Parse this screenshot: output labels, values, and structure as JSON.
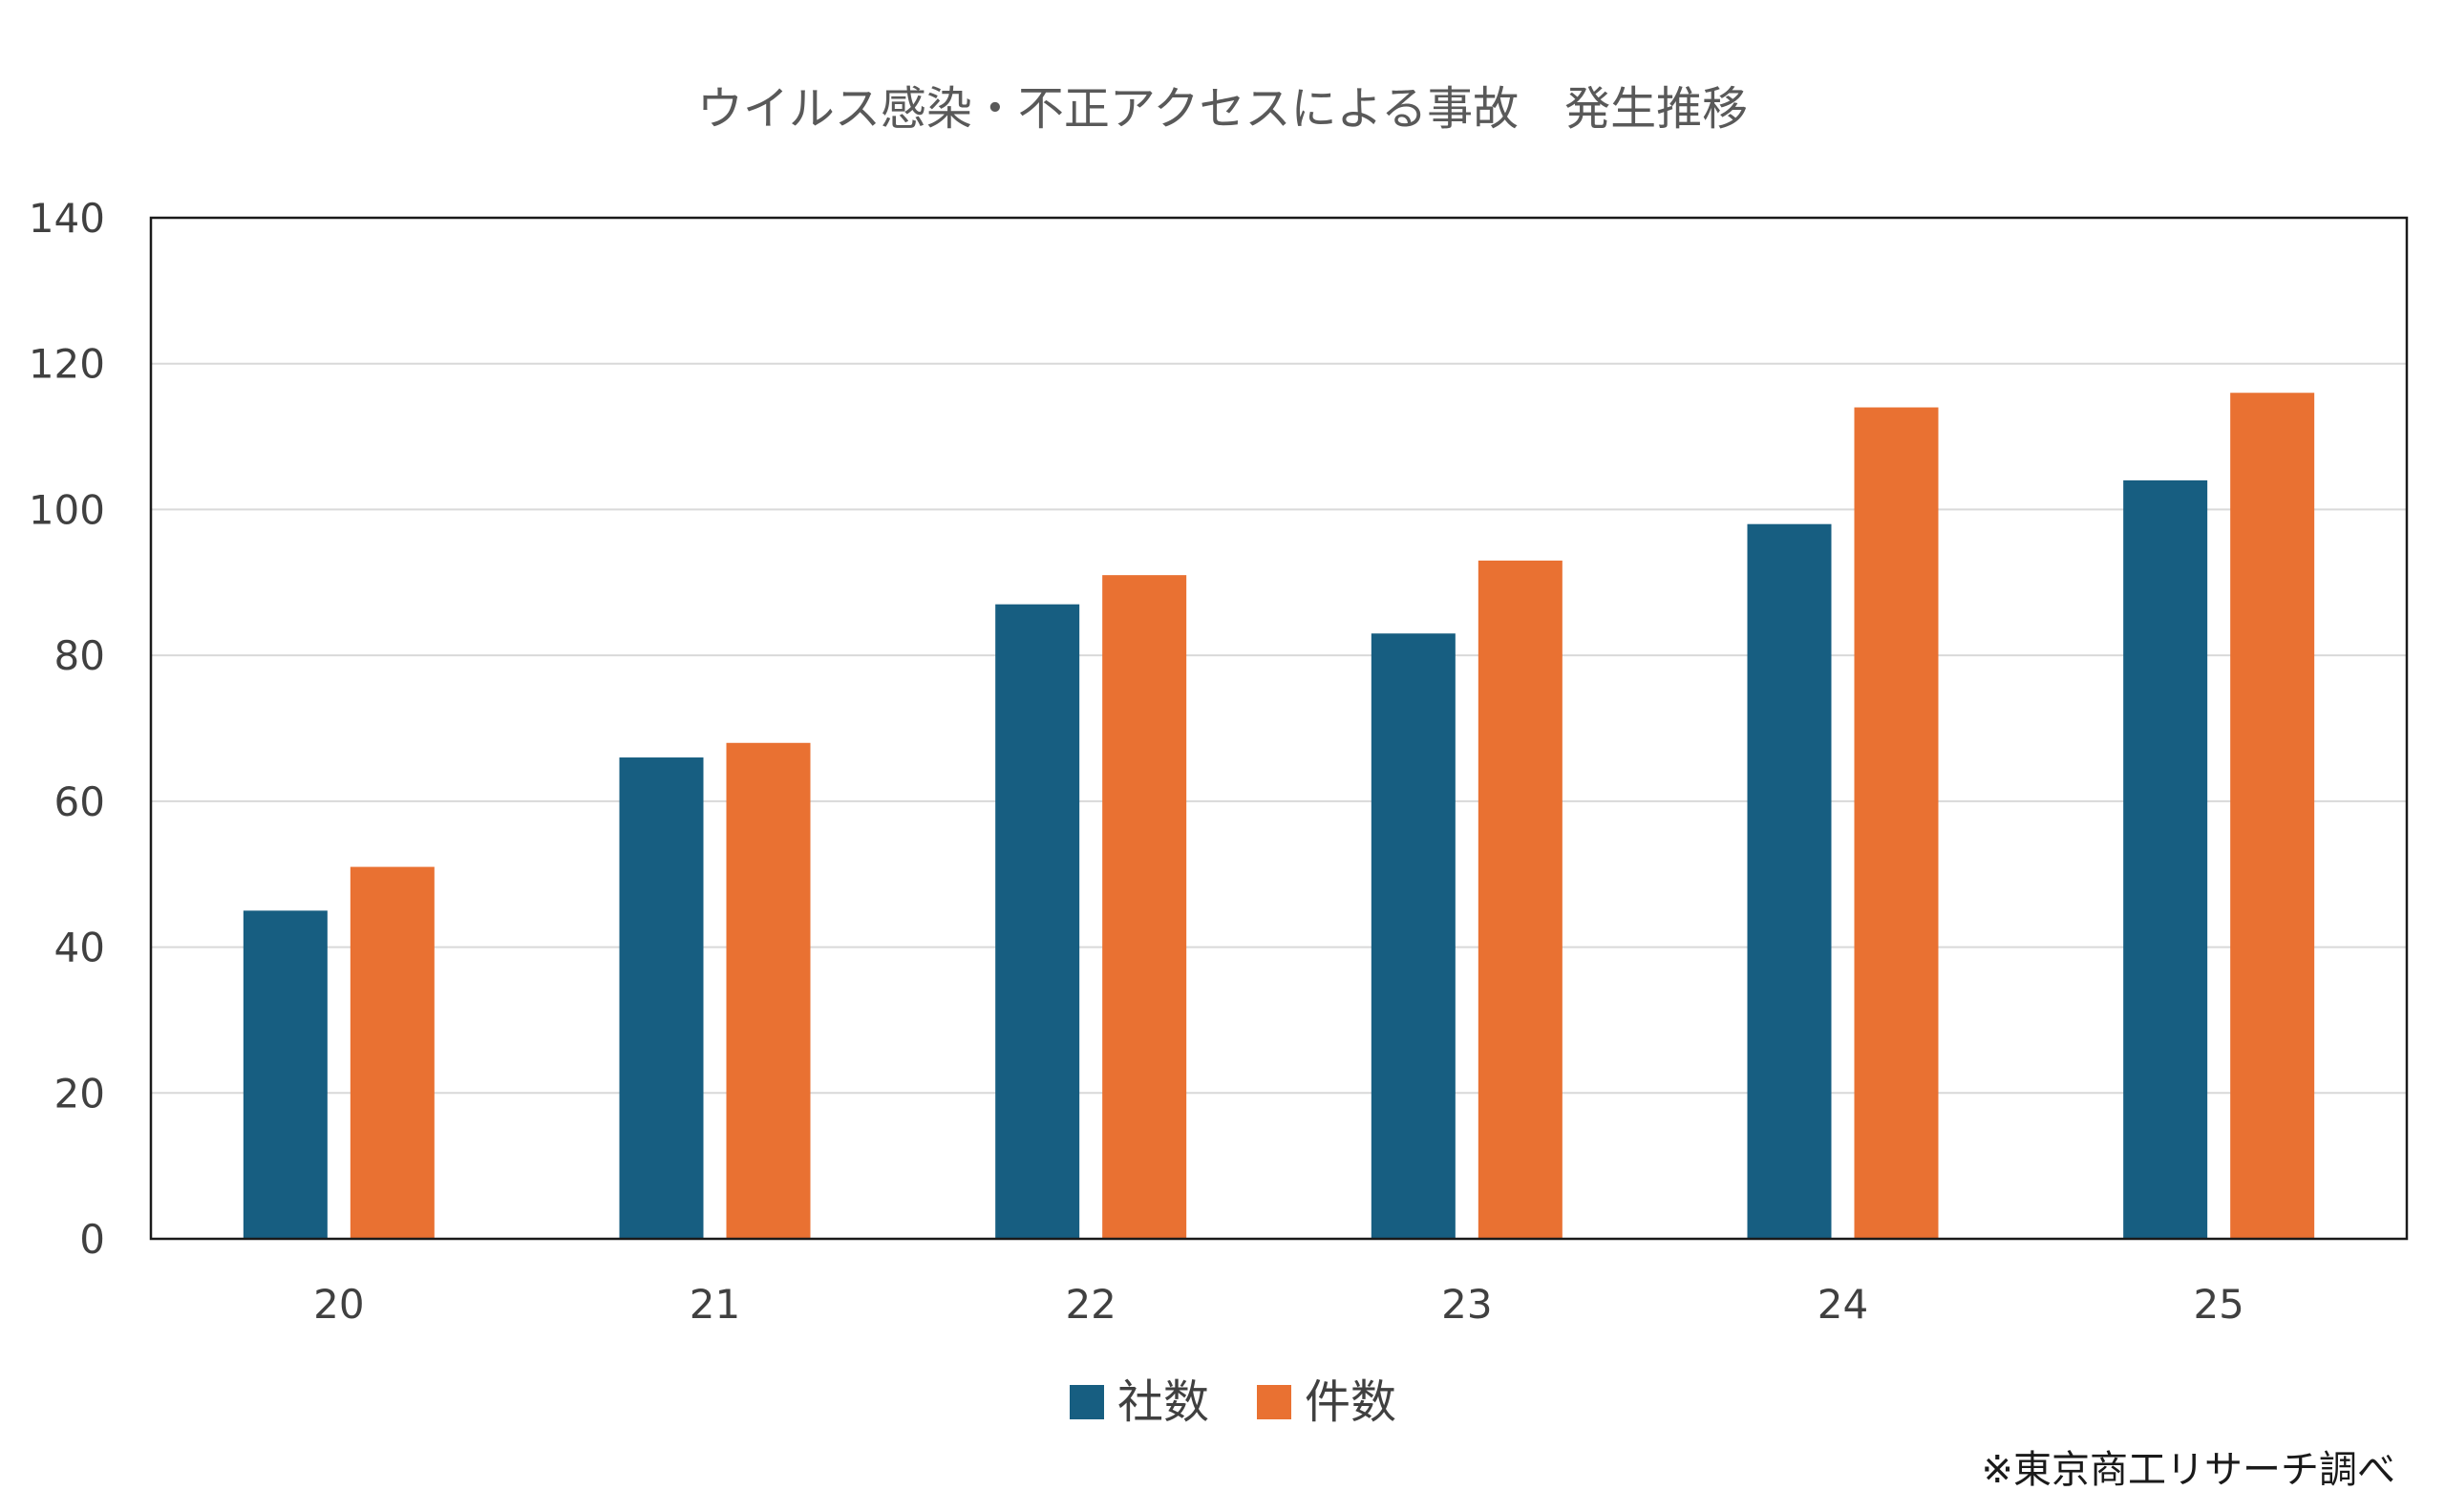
{
  "chart_data": {
    "type": "bar",
    "title": "ウイルス感染・不正アクセスによる事故　発生推移",
    "categories": [
      "20",
      "21",
      "22",
      "23",
      "24",
      "25"
    ],
    "series": [
      {
        "name": "社数",
        "values": [
          45,
          66,
          87,
          83,
          98,
          104
        ],
        "color": "#175e81"
      },
      {
        "name": "件数",
        "values": [
          51,
          68,
          91,
          93,
          114,
          116
        ],
        "color": "#e97132"
      }
    ],
    "ylim": [
      0,
      140
    ],
    "yticks": [
      "0",
      "20",
      "40",
      "60",
      "80",
      "100",
      "120",
      "140"
    ],
    "grid": true,
    "legend": "bottom-center",
    "source_note": "※東京商工リサーチ調べ"
  }
}
